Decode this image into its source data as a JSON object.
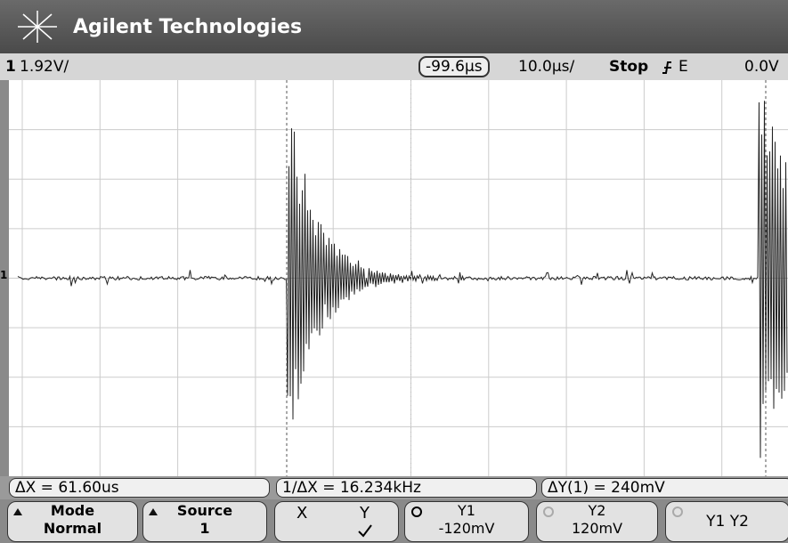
{
  "header": {
    "brand": "Agilent Technologies"
  },
  "status": {
    "channel": "1",
    "scale": "1.92V/",
    "delay": "-99.6µs",
    "timebase": "10.0µs/",
    "run_state": "Stop",
    "trigger_source": "E",
    "trigger_level": "0.0V"
  },
  "measurements": {
    "delta_x": "ΔX = 61.60us",
    "inverse_delta_x": "1/ΔX = 16.234kHz",
    "delta_y": "ΔY(1) = 240mV"
  },
  "softkeys": [
    {
      "label": "Mode",
      "value": "Normal"
    },
    {
      "label": "Source",
      "value": "1"
    },
    {
      "options": [
        "X",
        "Y"
      ]
    },
    {
      "label": "Y1",
      "value": "-120mV"
    },
    {
      "label": "Y2",
      "value": "120mV"
    },
    {
      "label": "Y1 Y2"
    }
  ]
}
